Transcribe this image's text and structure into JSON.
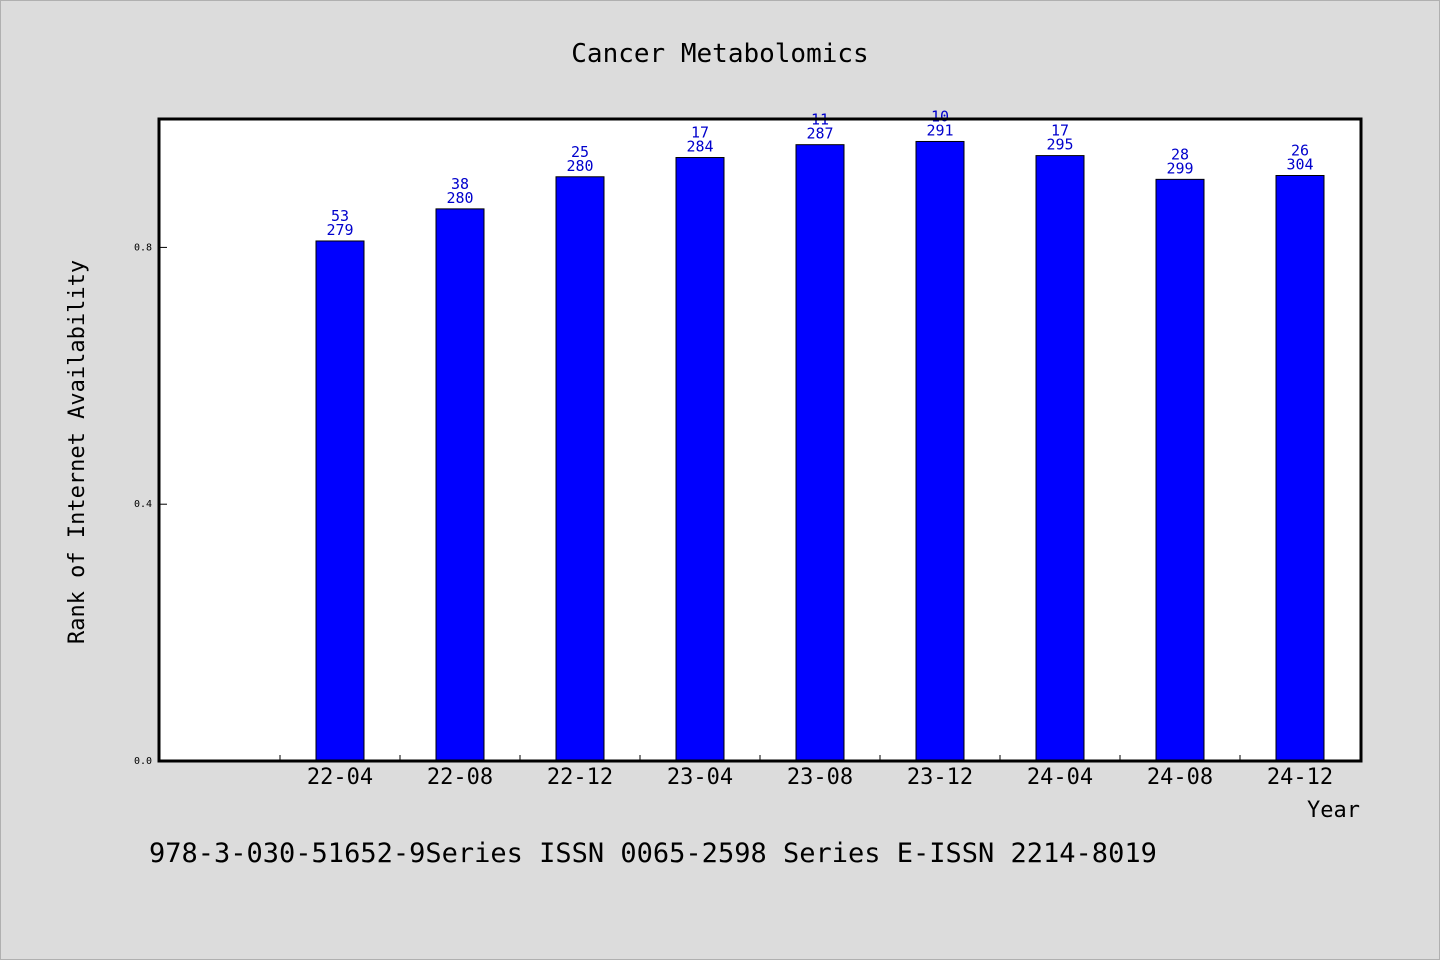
{
  "chart_data": {
    "type": "bar",
    "title": "Cancer Metabolomics",
    "xlabel": "Year",
    "ylabel": "Rank of Internet Availability",
    "ylim": [
      0,
      1.0
    ],
    "yticks": [
      0.0,
      0.4,
      0.8
    ],
    "ytick_labels": [
      "0.0",
      "0.4",
      "0.8"
    ],
    "categories": [
      "22-04",
      "22-08",
      "22-12",
      "23-04",
      "23-08",
      "23-12",
      "24-04",
      "24-08",
      "24-12"
    ],
    "values": [
      0.81,
      0.86,
      0.91,
      0.94,
      0.96,
      0.965,
      0.943,
      0.906,
      0.912
    ],
    "labels_top": [
      "53",
      "38",
      "25",
      "17",
      "11",
      "10",
      "17",
      "28",
      "26"
    ],
    "labels_bottom": [
      "279",
      "280",
      "280",
      "284",
      "287",
      "291",
      "295",
      "299",
      "304"
    ],
    "bar_color": "#0000ff",
    "label_color": "#0000cc",
    "grid": false
  },
  "footer": "978-3-030-51652-9Series ISSN 0065-2598 Series E-ISSN 2214-8019"
}
